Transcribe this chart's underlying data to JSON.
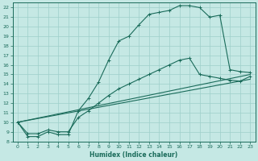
{
  "xlabel": "Humidex (Indice chaleur)",
  "xlim": [
    -0.5,
    23.5
  ],
  "ylim": [
    8,
    22.5
  ],
  "xticks": [
    0,
    1,
    2,
    3,
    4,
    5,
    6,
    7,
    8,
    9,
    10,
    11,
    12,
    13,
    14,
    15,
    16,
    17,
    18,
    19,
    20,
    21,
    22,
    23
  ],
  "yticks": [
    8,
    9,
    10,
    11,
    12,
    13,
    14,
    15,
    16,
    17,
    18,
    19,
    20,
    21,
    22
  ],
  "bg_color": "#c5e8e4",
  "line_color": "#1a6b5a",
  "grid_color": "#9ecfca",
  "main_curve": {
    "x": [
      0,
      1,
      2,
      3,
      4,
      5,
      6,
      7,
      8,
      9,
      10,
      11,
      12,
      13,
      14,
      15,
      16,
      17,
      18,
      19,
      20,
      21,
      22,
      23
    ],
    "y": [
      10,
      8.5,
      8.5,
      9,
      8.7,
      8.7,
      11.2,
      12.5,
      14.2,
      16.5,
      18.5,
      19,
      20.2,
      21.3,
      21.5,
      21.7,
      22.2,
      22.2,
      22,
      21.0,
      21.2,
      15.5,
      15.3,
      15.2
    ]
  },
  "line2": {
    "x": [
      0,
      1,
      2,
      3,
      4,
      5,
      6,
      7,
      8,
      9,
      10,
      11,
      12,
      13,
      14,
      15,
      16,
      17,
      18,
      19,
      20,
      21,
      22,
      23
    ],
    "y": [
      10,
      8.8,
      8.8,
      9.2,
      9.0,
      9.0,
      10.5,
      11.2,
      12.0,
      12.8,
      13.5,
      14.0,
      14.5,
      15.0,
      15.5,
      16.0,
      16.5,
      16.7,
      15.0,
      14.8,
      14.6,
      14.4,
      14.3,
      14.8
    ]
  },
  "upper_straight": {
    "x": [
      0,
      23
    ],
    "y": [
      10,
      15
    ]
  },
  "lower_straight": {
    "x": [
      0,
      23
    ],
    "y": [
      10,
      14.5
    ]
  }
}
